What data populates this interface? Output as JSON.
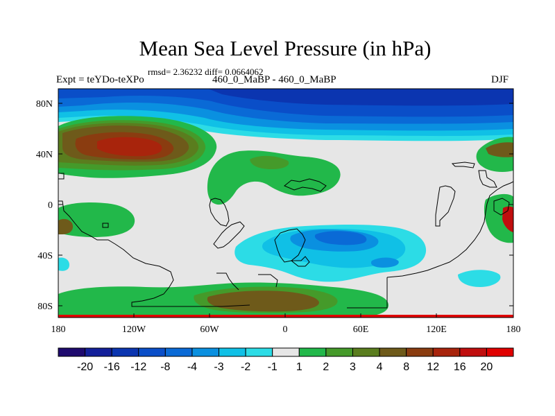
{
  "chart_data": {
    "type": "heatmap",
    "title": "Mean Sea Level Pressure (in hPa)",
    "stats": "rmsd= 2.36232 diff= 0.0664062",
    "left_label": "Expt = teYDo-teXPo",
    "center_label": "460_0_MaBP - 460_0_MaBP",
    "right_label": "DJF",
    "x_ticks": [
      "180",
      "120W",
      "60W",
      "0",
      "60E",
      "120E",
      "180"
    ],
    "y_ticks": [
      "80N",
      "40N",
      "0",
      "40S",
      "80S"
    ],
    "xlim": [
      -180,
      180
    ],
    "ylim": [
      -90,
      90
    ],
    "colorbar": {
      "labels": [
        "-20",
        "-16",
        "-12",
        "-8",
        "-4",
        "-3",
        "-2",
        "-1",
        "1",
        "2",
        "3",
        "4",
        "8",
        "12",
        "16",
        "20"
      ],
      "colors": [
        "#1e0a6e",
        "#13209a",
        "#0b35b0",
        "#0a4ec8",
        "#0a6ad6",
        "#0a90e0",
        "#10c0e6",
        "#2cdce6",
        "#e6e6e6",
        "#22b84a",
        "#459a2a",
        "#5a7d1e",
        "#6e5a1a",
        "#8a3c10",
        "#a8240c",
        "#c00e0e",
        "#e00000"
      ]
    }
  }
}
